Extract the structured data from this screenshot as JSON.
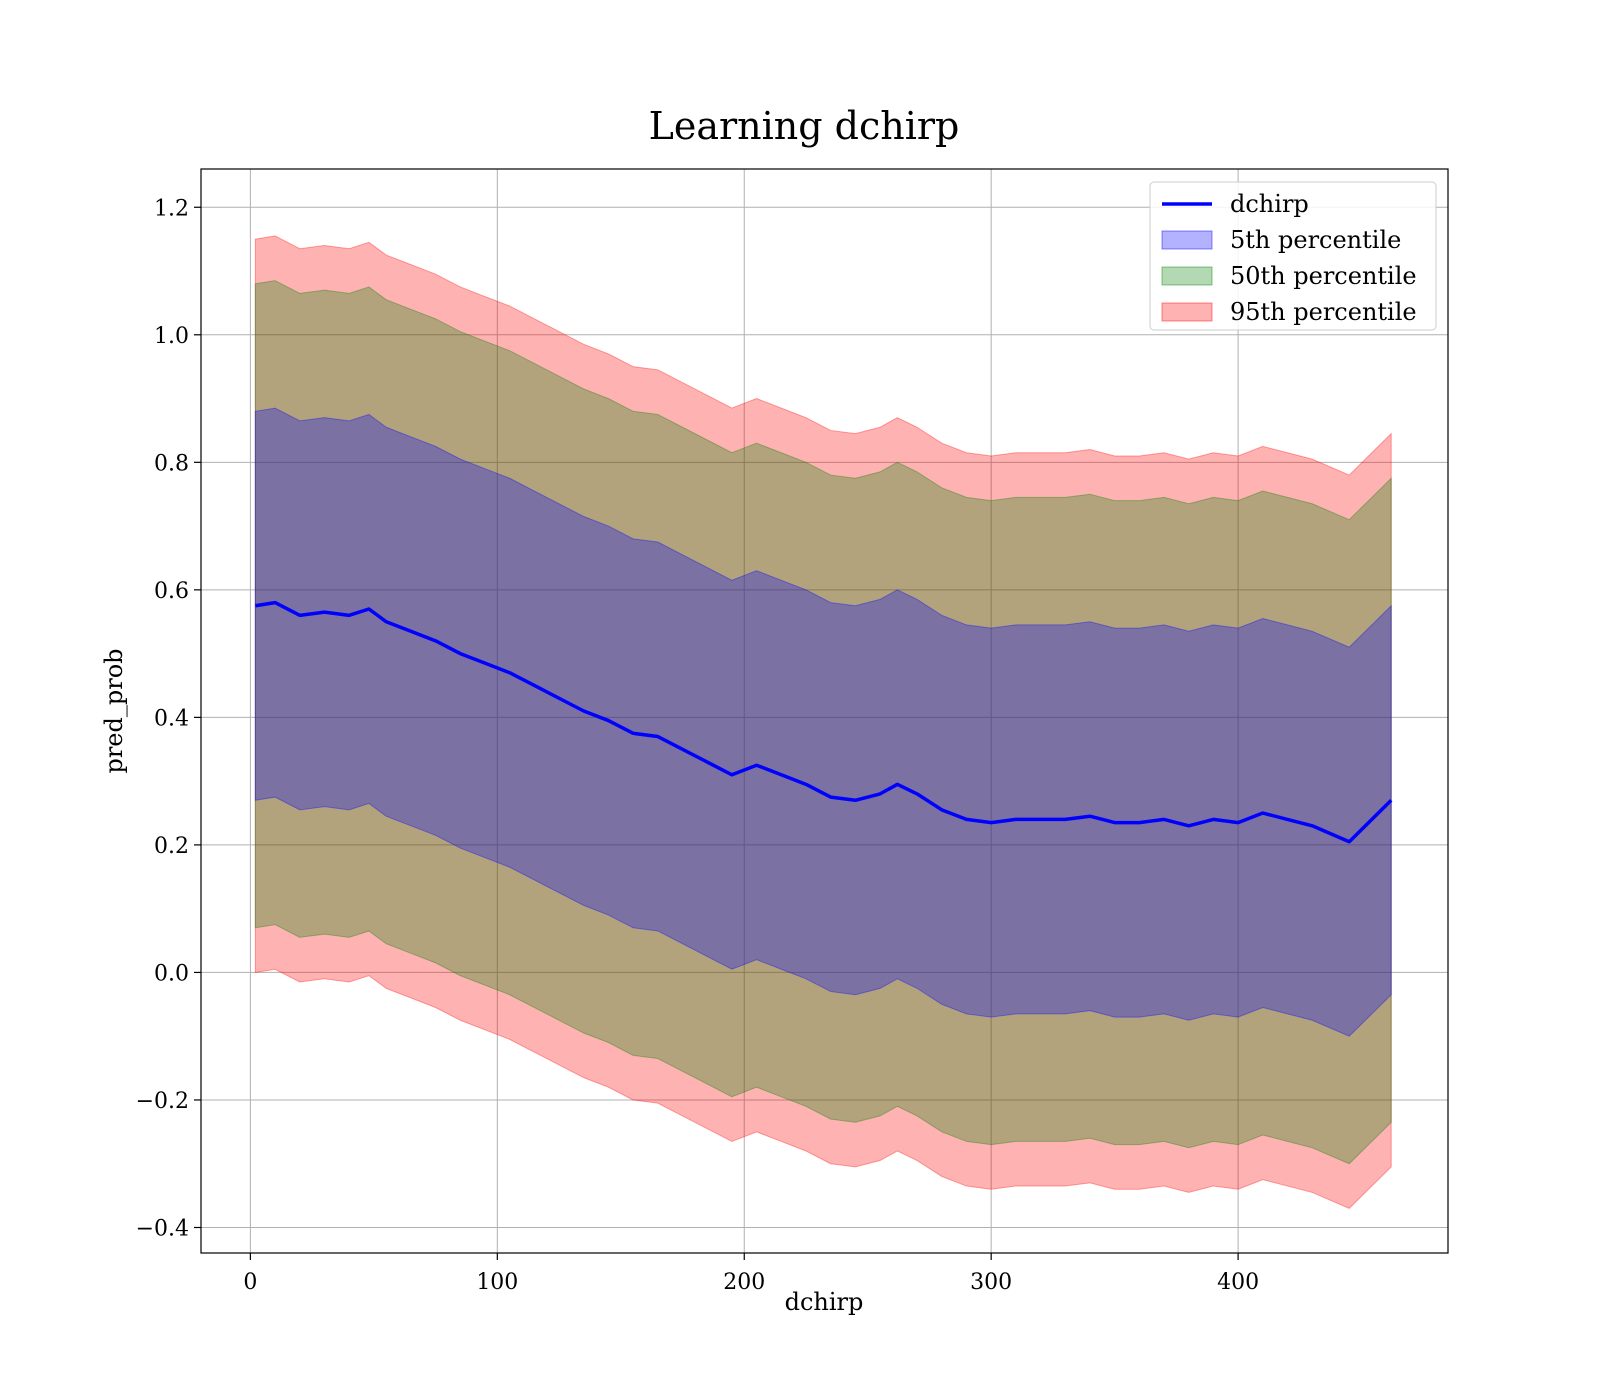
{
  "chart_data": {
    "type": "line",
    "title": "Learning dchirp",
    "xlabel": "dchirp",
    "ylabel": "pred_prob",
    "xlim": [
      -20,
      485
    ],
    "ylim": [
      -0.44,
      1.26
    ],
    "xticks": [
      0,
      100,
      200,
      300,
      400
    ],
    "xtick_labels": [
      "0",
      "100",
      "200",
      "300",
      "400"
    ],
    "yticks": [
      -0.4,
      -0.2,
      0.0,
      0.2,
      0.4,
      0.6,
      0.8,
      1.0,
      1.2
    ],
    "ytick_labels": [
      "−0.4",
      "−0.2",
      "0.0",
      "0.2",
      "0.4",
      "0.6",
      "0.8",
      "1.0",
      "1.2"
    ],
    "grid": true,
    "legend_position": "top-right",
    "x": [
      2,
      10,
      20,
      30,
      40,
      48,
      55,
      65,
      75,
      85,
      95,
      105,
      115,
      125,
      135,
      145,
      155,
      165,
      175,
      185,
      195,
      205,
      215,
      225,
      235,
      245,
      255,
      262,
      270,
      280,
      290,
      300,
      310,
      320,
      330,
      340,
      350,
      360,
      370,
      380,
      390,
      400,
      410,
      420,
      430,
      445,
      462
    ],
    "series": [
      {
        "name": "dchirp",
        "kind": "line",
        "color": "#0000ff",
        "values": [
          0.575,
          0.58,
          0.56,
          0.565,
          0.56,
          0.57,
          0.55,
          0.535,
          0.52,
          0.5,
          0.485,
          0.47,
          0.45,
          0.43,
          0.41,
          0.395,
          0.375,
          0.37,
          0.35,
          0.33,
          0.31,
          0.325,
          0.31,
          0.295,
          0.275,
          0.27,
          0.28,
          0.295,
          0.28,
          0.255,
          0.24,
          0.235,
          0.24,
          0.24,
          0.24,
          0.245,
          0.235,
          0.235,
          0.24,
          0.23,
          0.24,
          0.235,
          0.25,
          0.24,
          0.23,
          0.205,
          0.27
        ]
      },
      {
        "name": "5th percentile",
        "kind": "band",
        "color": "#0000ff",
        "half_width": 0.305
      },
      {
        "name": "50th percentile",
        "kind": "band",
        "color": "#008000",
        "half_width": 0.505
      },
      {
        "name": "95th percentile",
        "kind": "band",
        "color": "#ff0000",
        "half_width": 0.575
      }
    ]
  }
}
